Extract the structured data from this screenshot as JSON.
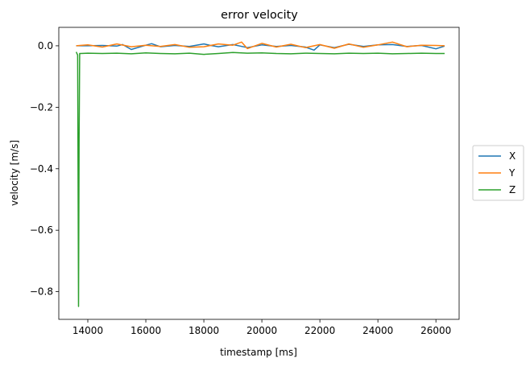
{
  "chart_data": {
    "type": "line",
    "title": "error velocity",
    "xlabel": "timestamp [ms]",
    "ylabel": "velocity [m/s]",
    "xlim": [
      13000,
      26800
    ],
    "ylim": [
      -0.89,
      0.06
    ],
    "xticks": [
      14000,
      16000,
      18000,
      20000,
      22000,
      24000,
      26000
    ],
    "xtick_labels": [
      "14000",
      "16000",
      "18000",
      "20000",
      "22000",
      "24000",
      "26000"
    ],
    "yticks": [
      0.0,
      -0.2,
      -0.4,
      -0.6,
      -0.8
    ],
    "ytick_labels": [
      "0.0",
      "−0.2",
      "−0.4",
      "−0.6",
      "−0.8"
    ],
    "grid": false,
    "legend_position": "center-right-outside",
    "series": [
      {
        "name": "X",
        "color": "#1f77b4",
        "x": [
          13600,
          14000,
          14500,
          15000,
          15200,
          15500,
          16000,
          16200,
          16500,
          17000,
          17500,
          18000,
          18200,
          18500,
          19000,
          19500,
          20000,
          20500,
          21000,
          21500,
          21800,
          22000,
          22500,
          23000,
          23500,
          24000,
          24500,
          25000,
          25500,
          26000,
          26300
        ],
        "y": [
          0.0,
          0.0,
          0.001,
          -0.001,
          0.004,
          -0.012,
          0.002,
          0.007,
          -0.003,
          0.001,
          -0.002,
          0.006,
          0.002,
          -0.003,
          0.004,
          -0.006,
          0.003,
          -0.002,
          0.001,
          -0.004,
          -0.014,
          0.003,
          -0.006,
          0.005,
          -0.002,
          0.003,
          0.004,
          -0.002,
          0.001,
          -0.01,
          -0.001
        ]
      },
      {
        "name": "Y",
        "color": "#ff7f0e",
        "x": [
          13600,
          14000,
          14500,
          15000,
          15500,
          16000,
          16500,
          17000,
          17500,
          18000,
          18500,
          19000,
          19300,
          19500,
          20000,
          20500,
          21000,
          21500,
          22000,
          22500,
          23000,
          23500,
          24000,
          24500,
          25000,
          25500,
          26000,
          26300
        ],
        "y": [
          0.0,
          0.003,
          -0.004,
          0.006,
          -0.003,
          0.002,
          -0.002,
          0.004,
          -0.005,
          -0.003,
          0.006,
          0.002,
          0.012,
          -0.009,
          0.008,
          -0.004,
          0.005,
          -0.006,
          0.004,
          -0.008,
          0.006,
          -0.005,
          0.003,
          0.012,
          -0.003,
          0.002,
          0.001,
          0.0
        ]
      },
      {
        "name": "Z",
        "color": "#2ca02c",
        "x": [
          13600,
          13650,
          13680,
          13700,
          13720,
          13760,
          14000,
          14500,
          15000,
          15500,
          16000,
          16500,
          17000,
          17500,
          18000,
          18500,
          19000,
          19500,
          20000,
          20500,
          21000,
          21500,
          22000,
          22500,
          23000,
          23500,
          24000,
          24500,
          25000,
          25500,
          26000,
          26300
        ],
        "y": [
          -0.02,
          -0.03,
          -0.848,
          -0.3,
          -0.025,
          -0.025,
          -0.024,
          -0.025,
          -0.024,
          -0.026,
          -0.023,
          -0.025,
          -0.026,
          -0.024,
          -0.028,
          -0.025,
          -0.022,
          -0.024,
          -0.023,
          -0.025,
          -0.026,
          -0.024,
          -0.025,
          -0.026,
          -0.024,
          -0.025,
          -0.024,
          -0.026,
          -0.025,
          -0.024,
          -0.025,
          -0.025
        ]
      }
    ]
  }
}
